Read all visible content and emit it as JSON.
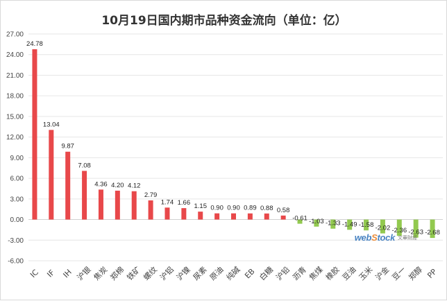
{
  "chart_data": {
    "type": "bar",
    "title": "10月19日国内期市品种资金流向（单位：亿）",
    "xlabel": "",
    "ylabel": "",
    "ylim": [
      -6,
      27
    ],
    "yticks": [
      "27.00",
      "24.00",
      "21.00",
      "18.00",
      "15.00",
      "12.00",
      "9.00",
      "6.00",
      "3.00",
      "0.00",
      "-3.00",
      "-6.00"
    ],
    "categories": [
      "IC",
      "IF",
      "IH",
      "沪银",
      "焦炭",
      "郑棉",
      "铁矿",
      "螺纹",
      "沪铝",
      "沪镍",
      "尿素",
      "原油",
      "纯碱",
      "EB",
      "白糖",
      "沪铅",
      "沥青",
      "焦煤",
      "橡胶",
      "豆油",
      "玉米",
      "沪金",
      "豆一",
      "郑醇",
      "PP"
    ],
    "values": [
      24.78,
      13.04,
      9.87,
      7.08,
      4.36,
      4.2,
      4.12,
      2.79,
      1.74,
      1.66,
      1.15,
      0.9,
      0.9,
      0.89,
      0.88,
      0.58,
      -0.61,
      -1.03,
      -1.33,
      -1.49,
      -1.58,
      -2.02,
      -2.36,
      -2.63,
      -2.68
    ],
    "labels": [
      "24.78",
      "13.04",
      "9.87",
      "7.08",
      "4.36",
      "4.20",
      "4.12",
      "2.79",
      "1.74",
      "1.66",
      "1.15",
      "0.90",
      "0.90",
      "0.89",
      "0.88",
      "0.58",
      "-0.61",
      "-1.03",
      "-1.33",
      "-1.49",
      "-1.58",
      "-2.02",
      "-2.36",
      "-2.63",
      "-2.68"
    ],
    "colors": {
      "positive": "#e8484a",
      "negative": "#92c94f"
    },
    "grid": true,
    "legend": "none"
  },
  "watermark": {
    "logo_prefix": "web",
    "logo_highlight": "S",
    "logo_suffix": "tock",
    "sub": "文華財經"
  }
}
